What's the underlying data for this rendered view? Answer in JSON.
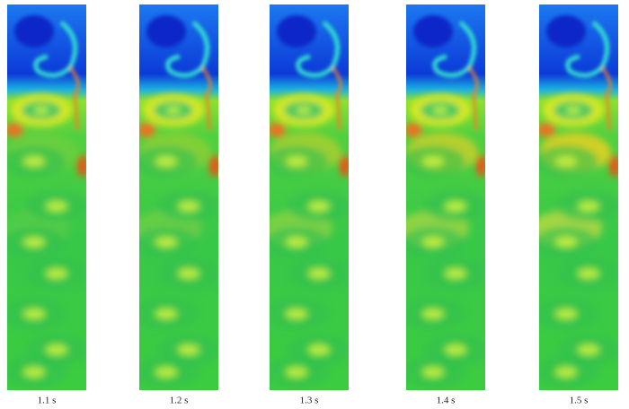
{
  "panels": [
    {
      "label": "1.1 s"
    },
    {
      "label": "1.2 s"
    },
    {
      "label": "1.3 s"
    },
    {
      "label": "1.4 s"
    },
    {
      "label": "1.5 s"
    }
  ]
}
